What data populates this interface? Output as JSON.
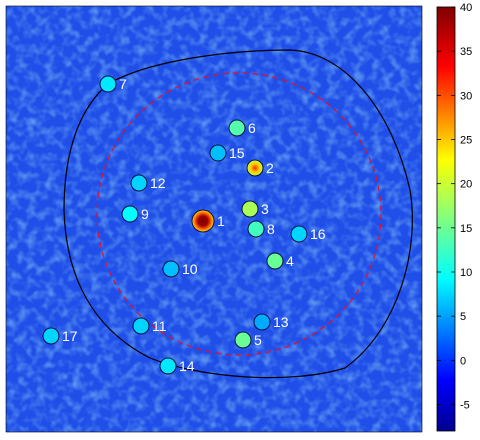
{
  "chart_data": {
    "type": "heatmap",
    "title": "",
    "xlabel": "",
    "ylabel": "",
    "colorscale": "jet",
    "colorbar": {
      "min": -8,
      "max": 40,
      "ticks": [
        -5,
        0,
        5,
        10,
        15,
        20,
        25,
        30,
        35,
        40
      ],
      "tick_labels": [
        "-5",
        "0",
        "5",
        "10",
        "15",
        "20",
        "25",
        "30",
        "35",
        "40"
      ]
    },
    "background_level": 0,
    "sources": [
      {
        "id": "1",
        "label": "1",
        "value": 40
      },
      {
        "id": "2",
        "label": "2",
        "value": 26
      },
      {
        "id": "3",
        "label": "3",
        "value": 18
      },
      {
        "id": "4",
        "label": "4",
        "value": 15
      },
      {
        "id": "5",
        "label": "5",
        "value": 15
      },
      {
        "id": "6",
        "label": "6",
        "value": 14
      },
      {
        "id": "7",
        "label": "7",
        "value": 9
      },
      {
        "id": "8",
        "label": "8",
        "value": 13
      },
      {
        "id": "9",
        "label": "9",
        "value": 10
      },
      {
        "id": "10",
        "label": "10",
        "value": 7
      },
      {
        "id": "11",
        "label": "11",
        "value": 8
      },
      {
        "id": "12",
        "label": "12",
        "value": 8
      },
      {
        "id": "13",
        "label": "13",
        "value": 6
      },
      {
        "id": "14",
        "label": "14",
        "value": 9
      },
      {
        "id": "15",
        "label": "15",
        "value": 7
      },
      {
        "id": "16",
        "label": "16",
        "value": 8
      },
      {
        "id": "17",
        "label": "17",
        "value": 8
      }
    ],
    "contours": [
      {
        "name": "outer-boundary",
        "style": "solid",
        "color": "#000000"
      },
      {
        "name": "inner-aperture",
        "style": "dashed",
        "color": "#e0102a"
      }
    ]
  }
}
